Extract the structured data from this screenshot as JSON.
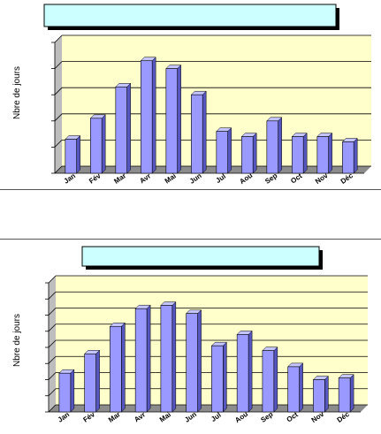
{
  "chart_data": [
    {
      "type": "bar",
      "title": "",
      "xlabel": "",
      "ylabel": "Nbre de jours",
      "categories": [
        "Jan",
        "Fév",
        "Mar",
        "Avr",
        "Mai",
        "Jun",
        "Jul",
        "Aou",
        "Sep",
        "Oct",
        "Nov",
        "Déc"
      ],
      "values": [
        1.3,
        2.1,
        3.3,
        4.3,
        4.0,
        3.0,
        1.6,
        1.4,
        2.0,
        1.4,
        1.4,
        1.2
      ],
      "ylim": [
        0,
        5
      ],
      "grid": true,
      "legend": "none"
    },
    {
      "type": "bar",
      "title": "",
      "xlabel": "",
      "ylabel": "Nbre de jours",
      "categories": [
        "Jan",
        "Fév",
        "Mar",
        "Avr",
        "Mai",
        "Jun",
        "Jul",
        "Aou",
        "Sep",
        "Oct",
        "Nov",
        "Déc"
      ],
      "values": [
        2.4,
        3.6,
        5.3,
        6.4,
        6.6,
        6.1,
        4.1,
        4.8,
        3.8,
        2.8,
        2.0,
        2.1
      ],
      "ylim": [
        0,
        8
      ],
      "grid": true,
      "legend": "none"
    }
  ],
  "colors": {
    "bar": "#9999ff",
    "plot_background": "#ffffcc",
    "title_box": "#ccffff"
  }
}
